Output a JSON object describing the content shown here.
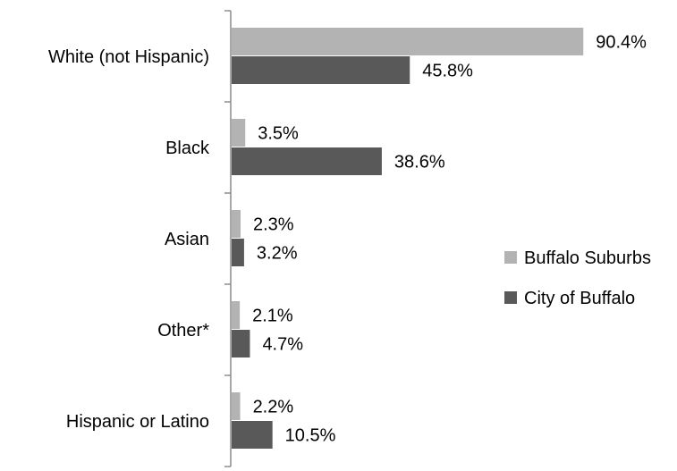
{
  "chart_data": {
    "type": "bar",
    "orientation": "horizontal",
    "categories": [
      "White (not Hispanic)",
      "Black",
      "Asian",
      "Other*",
      "Hispanic or Latino"
    ],
    "series": [
      {
        "name": "Buffalo Suburbs",
        "values": [
          90.4,
          3.5,
          2.3,
          2.1,
          2.2
        ],
        "labels": [
          "90.4%",
          "3.5%",
          "2.3%",
          "2.1%",
          "2.2%"
        ],
        "color": "#b3b3b3"
      },
      {
        "name": "City of Buffalo",
        "values": [
          45.8,
          38.6,
          3.2,
          4.7,
          10.5
        ],
        "labels": [
          "45.8%",
          "38.6%",
          "3.2%",
          "4.7%",
          "10.5%"
        ],
        "color": "#595959"
      }
    ],
    "xlim": [
      0,
      100
    ],
    "value_unit": "%",
    "title": "",
    "xlabel": "",
    "ylabel": "",
    "grid": false,
    "legend_position": "right"
  }
}
